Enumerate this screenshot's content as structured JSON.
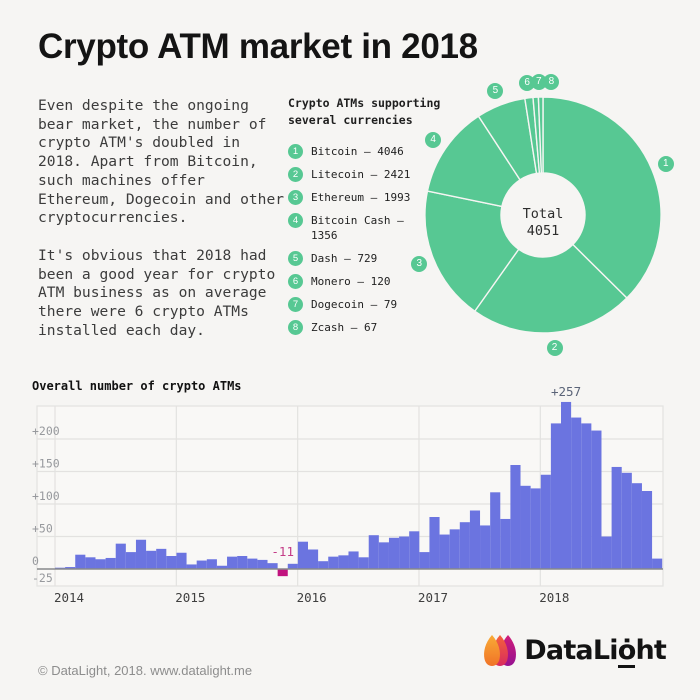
{
  "page": {
    "title": "Crypto ATM market in 2018",
    "background": "#f6f5f3"
  },
  "intro": {
    "para1": "Even despite the ongoing bear market, the number of crypto ATM's doubled in 2018. Apart from Bitcoin, such machines offer Ethereum, Dogecoin and other cryptocurrencies.",
    "para2": "It's obvious that 2018 had been a good year for crypto ATM business as on average there were 6 crypto ATMs installed each day."
  },
  "donut": {
    "heading": "Crypto ATMs supporting\nseveral currencies",
    "center": {
      "line1": "Total",
      "line2": "4051"
    },
    "color": "#57c893",
    "divider_color": "#f6f5f3",
    "items": [
      {
        "num": "1",
        "name": "Bitcoin",
        "value": 4046,
        "label": "Bitcoin – 4046"
      },
      {
        "num": "2",
        "name": "Litecoin",
        "value": 2421,
        "label": "Litecoin – 2421"
      },
      {
        "num": "3",
        "name": "Ethereum",
        "value": 1993,
        "label": "Ethereum – 1993"
      },
      {
        "num": "4",
        "name": "Bitcoin Cash",
        "value": 1356,
        "label": "Bitcoin Cash – 1356"
      },
      {
        "num": "5",
        "name": "Dash",
        "value": 729,
        "label": "Dash – 729"
      },
      {
        "num": "6",
        "name": "Monero",
        "value": 120,
        "label": "Monero – 120"
      },
      {
        "num": "7",
        "name": "Dogecoin",
        "value": 79,
        "label": "Dogecoin – 79"
      },
      {
        "num": "8",
        "name": "Zcash",
        "value": 67,
        "label": "Zcash – 67"
      }
    ]
  },
  "bar_chart": {
    "title": "Overall number of crypto ATMs",
    "chart_data": {
      "type": "bar",
      "title": "Overall number of crypto ATMs",
      "x_years": [
        "2014",
        "2015",
        "2016",
        "2017",
        "2018"
      ],
      "months_per_year": 12,
      "values": [
        2,
        3,
        22,
        18,
        15,
        17,
        39,
        26,
        45,
        28,
        31,
        20,
        25,
        7,
        13,
        15,
        5,
        19,
        20,
        16,
        14,
        9,
        -11,
        8,
        42,
        30,
        12,
        19,
        21,
        27,
        18,
        52,
        41,
        48,
        50,
        58,
        26,
        80,
        53,
        61,
        72,
        90,
        67,
        118,
        77,
        160,
        128,
        124,
        145,
        224,
        257,
        233,
        224,
        213,
        50,
        157,
        148,
        132,
        120,
        16
      ],
      "ylim": [
        -25,
        250
      ],
      "yticks": [
        "+200",
        "+150",
        "+100",
        "+50",
        "0",
        "-25"
      ],
      "ytick_values": [
        200,
        150,
        100,
        50,
        0,
        -25
      ],
      "grid": true,
      "bar_color": "#6b74e0",
      "negative_color": "#c1137e",
      "annotations": [
        {
          "text": "+257",
          "month_index": 50,
          "color": "#5b6478"
        },
        {
          "text": "-11",
          "month_index": 22,
          "color": "#c43c87"
        }
      ]
    }
  },
  "footer": {
    "copyright": "© DataLight, 2018. www.datalight.me",
    "logo_text_start": "DataLi",
    "logo_text_g": "ȯ",
    "logo_text_end": "ht",
    "logo_colors": [
      "#f8a233",
      "#ef5436",
      "#c2177c"
    ]
  }
}
